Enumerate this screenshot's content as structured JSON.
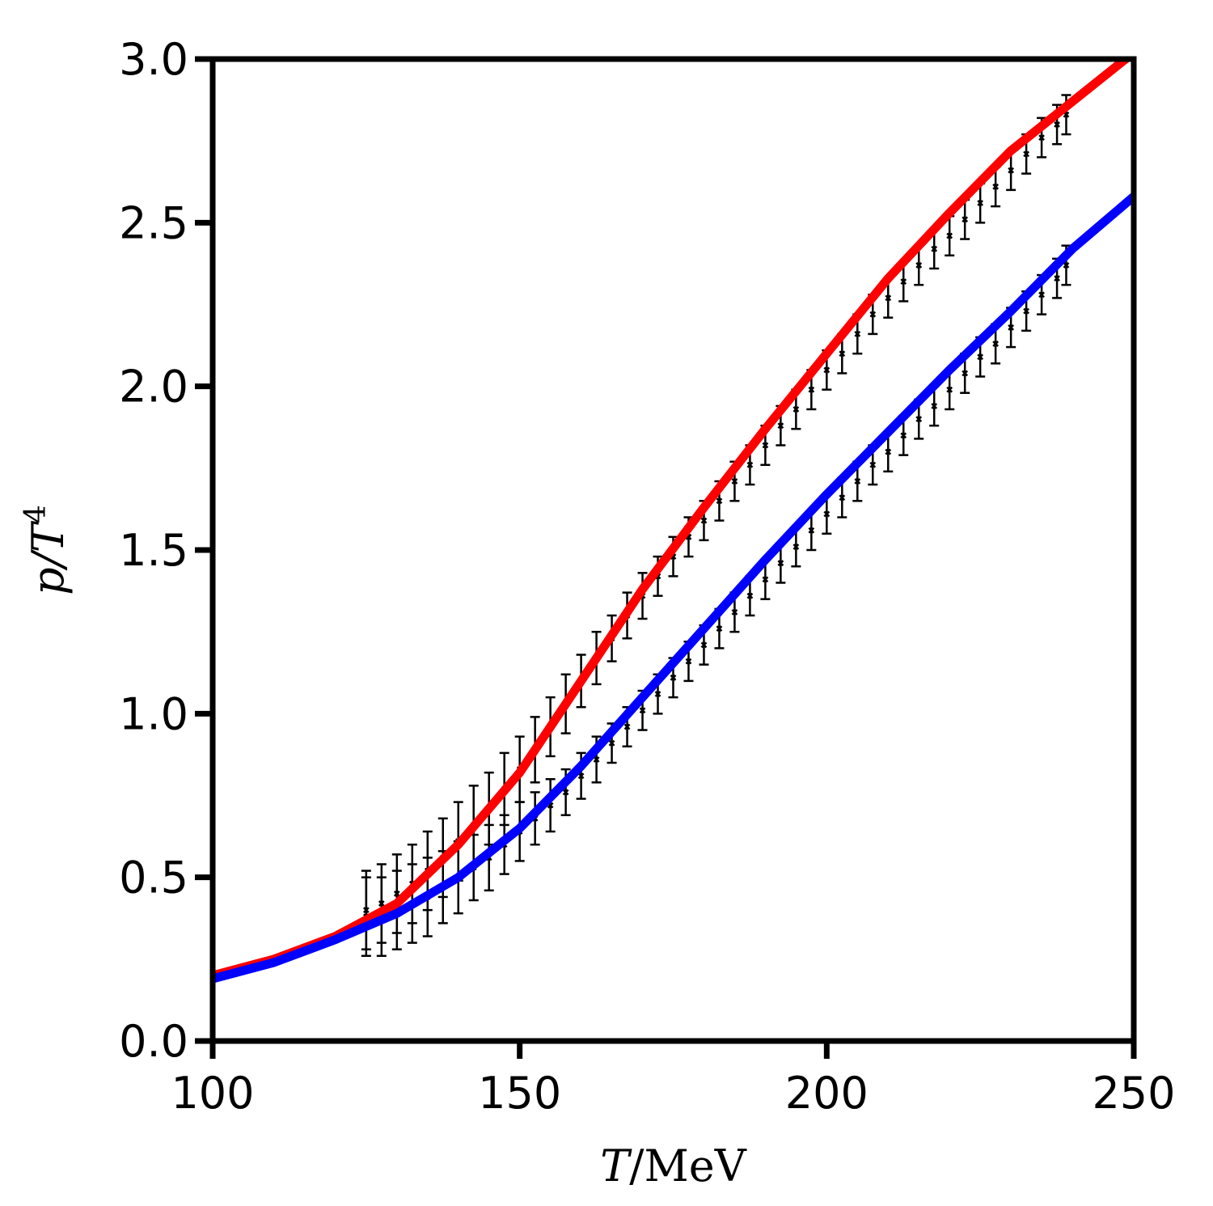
{
  "chart_data": {
    "type": "line",
    "xlabel_var": "T",
    "xlabel_unit": "/MeV",
    "ylabel_var": "p/T",
    "ylabel_sup": "4",
    "xlim": [
      100,
      250
    ],
    "ylim": [
      0.0,
      3.0
    ],
    "xticks": [
      {
        "value": 100,
        "label": "100"
      },
      {
        "value": 150,
        "label": "150"
      },
      {
        "value": 200,
        "label": "200"
      },
      {
        "value": 250,
        "label": "250"
      }
    ],
    "yticks": [
      {
        "value": 0.0,
        "label": "0.0"
      },
      {
        "value": 0.5,
        "label": "0.5"
      },
      {
        "value": 1.0,
        "label": "1.0"
      },
      {
        "value": 1.5,
        "label": "1.5"
      },
      {
        "value": 2.0,
        "label": "2.0"
      },
      {
        "value": 2.5,
        "label": "2.5"
      },
      {
        "value": 3.0,
        "label": "3.0"
      }
    ],
    "grid": false,
    "legend": "none",
    "series": [
      {
        "color": "#ff0000",
        "x": [
          100,
          110,
          120,
          130,
          140,
          150,
          160,
          170,
          180,
          190,
          200,
          210,
          220,
          230,
          240,
          250
        ],
        "y": [
          0.2,
          0.25,
          0.32,
          0.42,
          0.6,
          0.82,
          1.1,
          1.38,
          1.63,
          1.87,
          2.1,
          2.33,
          2.53,
          2.72,
          2.87,
          3.02
        ]
      },
      {
        "color": "#0000ff",
        "x": [
          100,
          110,
          120,
          130,
          140,
          150,
          160,
          170,
          180,
          190,
          200,
          210,
          220,
          230,
          240,
          250
        ],
        "y": [
          0.19,
          0.24,
          0.31,
          0.39,
          0.5,
          0.65,
          0.84,
          1.05,
          1.26,
          1.47,
          1.67,
          1.86,
          2.05,
          2.23,
          2.42,
          2.58
        ]
      }
    ],
    "error_data": [
      {
        "color": "#000000",
        "x": [
          125,
          127.5,
          130,
          132.5,
          135,
          137.5,
          140,
          142.5,
          145,
          147.5,
          150,
          152.5,
          155,
          157.5,
          160,
          162.5,
          165,
          167.5,
          170,
          172.5,
          175,
          177.5,
          180,
          182.5,
          185,
          187.5,
          190,
          192.5,
          195,
          197.5,
          200,
          202.5,
          205,
          207.5,
          210,
          212.5,
          215,
          217.5,
          220,
          222.5,
          225,
          227.5,
          230,
          232.5,
          235,
          237.5,
          239
        ],
        "y": [
          0.4,
          0.42,
          0.45,
          0.48,
          0.52,
          0.56,
          0.61,
          0.66,
          0.71,
          0.77,
          0.83,
          0.89,
          0.96,
          1.03,
          1.1,
          1.17,
          1.23,
          1.3,
          1.36,
          1.42,
          1.48,
          1.54,
          1.59,
          1.65,
          1.71,
          1.76,
          1.82,
          1.88,
          1.93,
          1.99,
          2.05,
          2.1,
          2.16,
          2.22,
          2.27,
          2.32,
          2.37,
          2.42,
          2.46,
          2.51,
          2.56,
          2.61,
          2.66,
          2.71,
          2.76,
          2.8,
          2.83
        ],
        "err": [
          0.12,
          0.12,
          0.12,
          0.12,
          0.12,
          0.12,
          0.12,
          0.12,
          0.11,
          0.11,
          0.1,
          0.1,
          0.09,
          0.09,
          0.08,
          0.08,
          0.07,
          0.07,
          0.07,
          0.06,
          0.06,
          0.06,
          0.06,
          0.06,
          0.06,
          0.06,
          0.06,
          0.06,
          0.06,
          0.06,
          0.06,
          0.06,
          0.06,
          0.06,
          0.06,
          0.06,
          0.06,
          0.06,
          0.06,
          0.06,
          0.06,
          0.06,
          0.06,
          0.06,
          0.06,
          0.06,
          0.06
        ]
      },
      {
        "color": "#000000",
        "x": [
          125,
          127.5,
          130,
          132.5,
          135,
          137.5,
          140,
          142.5,
          145,
          147.5,
          150,
          152.5,
          155,
          157.5,
          160,
          162.5,
          165,
          167.5,
          170,
          172.5,
          175,
          177.5,
          180,
          182.5,
          185,
          187.5,
          190,
          192.5,
          195,
          197.5,
          200,
          202.5,
          205,
          207.5,
          210,
          212.5,
          215,
          217.5,
          220,
          222.5,
          225,
          227.5,
          230,
          232.5,
          235,
          237.5,
          239
        ],
        "y": [
          0.38,
          0.38,
          0.4,
          0.42,
          0.44,
          0.47,
          0.5,
          0.53,
          0.56,
          0.6,
          0.64,
          0.68,
          0.72,
          0.76,
          0.81,
          0.86,
          0.91,
          0.96,
          1.01,
          1.06,
          1.11,
          1.16,
          1.21,
          1.26,
          1.31,
          1.36,
          1.41,
          1.46,
          1.51,
          1.56,
          1.61,
          1.66,
          1.71,
          1.76,
          1.8,
          1.85,
          1.9,
          1.94,
          1.99,
          2.04,
          2.09,
          2.13,
          2.18,
          2.23,
          2.28,
          2.33,
          2.37
        ],
        "err": [
          0.12,
          0.12,
          0.12,
          0.12,
          0.12,
          0.11,
          0.11,
          0.1,
          0.1,
          0.09,
          0.09,
          0.08,
          0.08,
          0.07,
          0.07,
          0.07,
          0.06,
          0.06,
          0.06,
          0.06,
          0.06,
          0.06,
          0.06,
          0.06,
          0.06,
          0.06,
          0.06,
          0.06,
          0.06,
          0.06,
          0.06,
          0.06,
          0.06,
          0.06,
          0.06,
          0.06,
          0.06,
          0.06,
          0.06,
          0.06,
          0.06,
          0.06,
          0.06,
          0.06,
          0.06,
          0.06,
          0.06
        ]
      }
    ]
  }
}
